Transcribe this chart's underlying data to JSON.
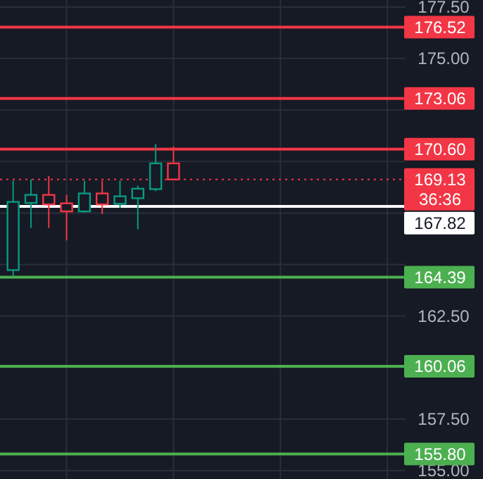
{
  "chart_data": {
    "type": "candlestick",
    "categories": [
      null,
      null,
      null,
      null,
      null,
      null,
      null,
      null,
      null,
      null,
      null,
      null,
      null,
      null,
      null,
      null,
      null,
      null,
      null,
      null,
      null,
      null,
      null
    ],
    "ohlc": [
      [
        164.73,
        169.07,
        164.44,
        168.04
      ],
      [
        167.99,
        169.13,
        166.78,
        168.38
      ],
      [
        168.38,
        169.29,
        166.78,
        167.92
      ],
      [
        167.97,
        168.38,
        166.17,
        167.58
      ],
      [
        167.58,
        169.07,
        167.51,
        168.45
      ],
      [
        168.45,
        169.07,
        167.45,
        167.92
      ],
      [
        167.95,
        169.07,
        167.74,
        168.31
      ],
      [
        168.22,
        168.83,
        166.71,
        168.68
      ],
      [
        168.66,
        170.84,
        168.56,
        169.91
      ],
      [
        169.91,
        170.73,
        169.13,
        169.13
      ],
      null,
      null,
      null,
      null,
      null,
      null,
      null,
      null,
      null,
      null,
      null,
      null,
      null
    ],
    "colors": [
      "#089981",
      "#089981",
      "#f23645",
      "#f23645",
      "#089981",
      "#f23645",
      "#089981",
      "#089981",
      "#089981",
      "#f23645",
      null,
      null,
      null,
      null,
      null,
      null,
      null,
      null,
      null,
      null,
      null,
      null,
      null
    ],
    "ylim": [
      154.59,
      177.84
    ],
    "yticks": [
      {
        "value": 155,
        "label": "155.00"
      },
      {
        "value": 157.5,
        "label": "157.50"
      },
      {
        "value": 160,
        "label": null
      },
      {
        "value": 162.5,
        "label": "162.50"
      },
      {
        "value": 165,
        "label": null
      },
      {
        "value": 167.5,
        "label": null
      },
      {
        "value": 170,
        "label": null
      },
      {
        "value": 172.5,
        "label": null
      },
      {
        "value": 175,
        "label": "175.00"
      },
      {
        "value": 177.5,
        "label": "177.50"
      }
    ],
    "grid": true,
    "ref_lines": [
      {
        "axis": "y",
        "value": 176.52,
        "label": "176.52",
        "color": "#f23645",
        "line_style": "solid"
      },
      {
        "axis": "y",
        "value": 173.06,
        "label": "173.06",
        "color": "#f23645",
        "line_style": "solid"
      },
      {
        "axis": "y",
        "value": 170.6,
        "label": "170.60",
        "color": "#f23645",
        "line_style": "solid"
      },
      {
        "axis": "y",
        "value": 169.13,
        "label": "169.13",
        "color": "#f23645",
        "line_style": "dotted"
      },
      {
        "axis": "y",
        "value": 167.82,
        "label": "167.82",
        "color": "#ffffff",
        "line_style": "solid"
      },
      {
        "axis": "y",
        "value": 164.39,
        "label": "164.39",
        "color": "#4caf50",
        "line_style": "solid"
      },
      {
        "axis": "y",
        "value": 160.06,
        "label": "160.06",
        "color": "#4caf50",
        "line_style": "solid"
      },
      {
        "axis": "y",
        "value": 155.8,
        "label": "155.80",
        "color": "#4caf50",
        "line_style": "solid"
      }
    ],
    "annotations": [
      "36:36"
    ]
  }
}
